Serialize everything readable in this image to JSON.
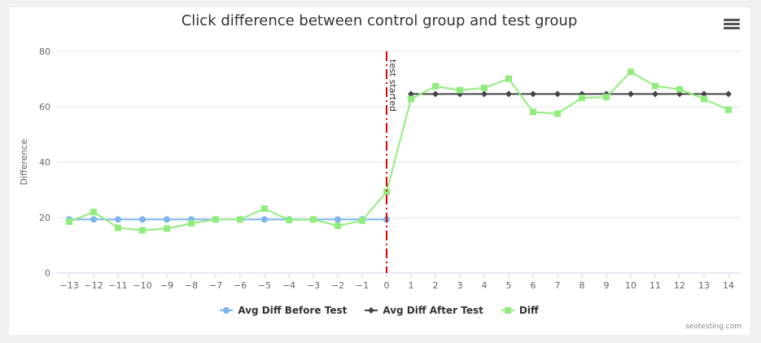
{
  "title": "Click difference between control group and test group",
  "credit": "seotesting.com",
  "menu_icon": "hamburger-menu-icon",
  "colors": {
    "before": "#7cb5ec",
    "after": "#434348",
    "diff": "#90ed7d",
    "test_line": "#e00000",
    "grid": "#e6e6e6",
    "axis_text": "#666666"
  },
  "chart_data": {
    "type": "line",
    "title": "Click difference between control group and test group",
    "xlabel": "",
    "ylabel": "Difference",
    "xlim": [
      -13,
      14
    ],
    "ylim": [
      0,
      80
    ],
    "x_ticks": [
      -13,
      -12,
      -11,
      -10,
      -9,
      -8,
      -7,
      -6,
      -5,
      -4,
      -3,
      -2,
      -1,
      0,
      1,
      2,
      3,
      4,
      5,
      6,
      7,
      8,
      9,
      10,
      11,
      12,
      13,
      14
    ],
    "y_ticks": [
      0,
      20,
      40,
      60,
      80
    ],
    "grid": true,
    "legend": "bottom-center",
    "plot_line": {
      "x": 0,
      "label": "test started"
    },
    "series": [
      {
        "name": "Avg Diff Before Test",
        "marker": "circle",
        "x": [
          -13,
          -12,
          -11,
          -10,
          -9,
          -8,
          -7,
          -6,
          -5,
          -4,
          -3,
          -2,
          -1,
          0
        ],
        "y": [
          19.3,
          19.3,
          19.3,
          19.3,
          19.3,
          19.3,
          19.3,
          19.3,
          19.3,
          19.3,
          19.3,
          19.3,
          19.3,
          19.3
        ]
      },
      {
        "name": "Avg Diff After Test",
        "marker": "diamond",
        "x": [
          1,
          2,
          3,
          4,
          5,
          6,
          7,
          8,
          9,
          10,
          11,
          12,
          13,
          14
        ],
        "y": [
          64.6,
          64.6,
          64.6,
          64.6,
          64.6,
          64.6,
          64.6,
          64.6,
          64.6,
          64.6,
          64.6,
          64.6,
          64.6,
          64.6
        ]
      },
      {
        "name": "Diff",
        "marker": "square",
        "x": [
          -13,
          -12,
          -11,
          -10,
          -9,
          -8,
          -7,
          -6,
          -5,
          -4,
          -3,
          -2,
          -1,
          0,
          1,
          2,
          3,
          4,
          5,
          6,
          7,
          8,
          9,
          10,
          11,
          12,
          13,
          14
        ],
        "y": [
          18.5,
          22,
          16.3,
          15.4,
          16,
          17.9,
          19.3,
          19.3,
          23.2,
          19.1,
          19.3,
          17,
          18.9,
          29.3,
          62.8,
          67.4,
          66,
          66.8,
          70.1,
          58.1,
          57.5,
          63.2,
          63.5,
          72.6,
          67.5,
          66.3,
          62.8,
          58.9
        ]
      }
    ]
  }
}
